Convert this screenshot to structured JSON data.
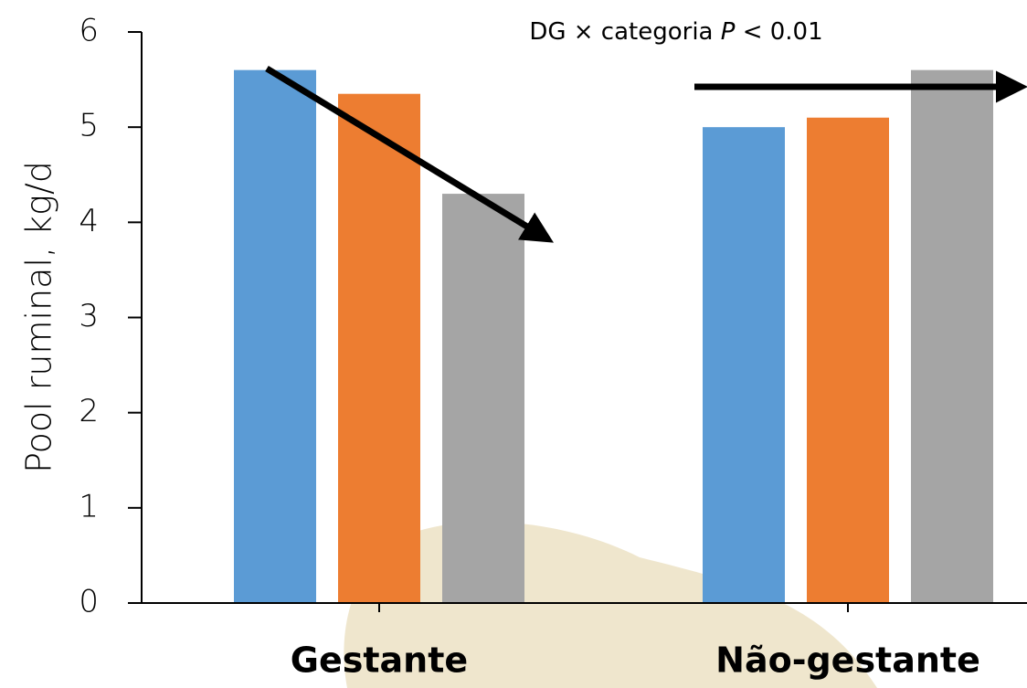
{
  "chart_data": {
    "type": "bar",
    "y_label": "Pool ruminal, kg/d",
    "annotation": [
      "DG × categoria ",
      "P",
      " < 0.01"
    ],
    "categories": [
      "Gestante",
      "Não-gestante"
    ],
    "series": [
      {
        "color": "#5b9bd5",
        "values": [
          5.6,
          5.0
        ]
      },
      {
        "color": "#ed7d31",
        "values": [
          5.35,
          5.1
        ]
      },
      {
        "color": "#a5a5a5",
        "values": [
          4.3,
          5.6
        ]
      }
    ],
    "ylim": [
      0,
      6
    ],
    "yticks": [
      0,
      1,
      2,
      3,
      4,
      5,
      6
    ]
  }
}
